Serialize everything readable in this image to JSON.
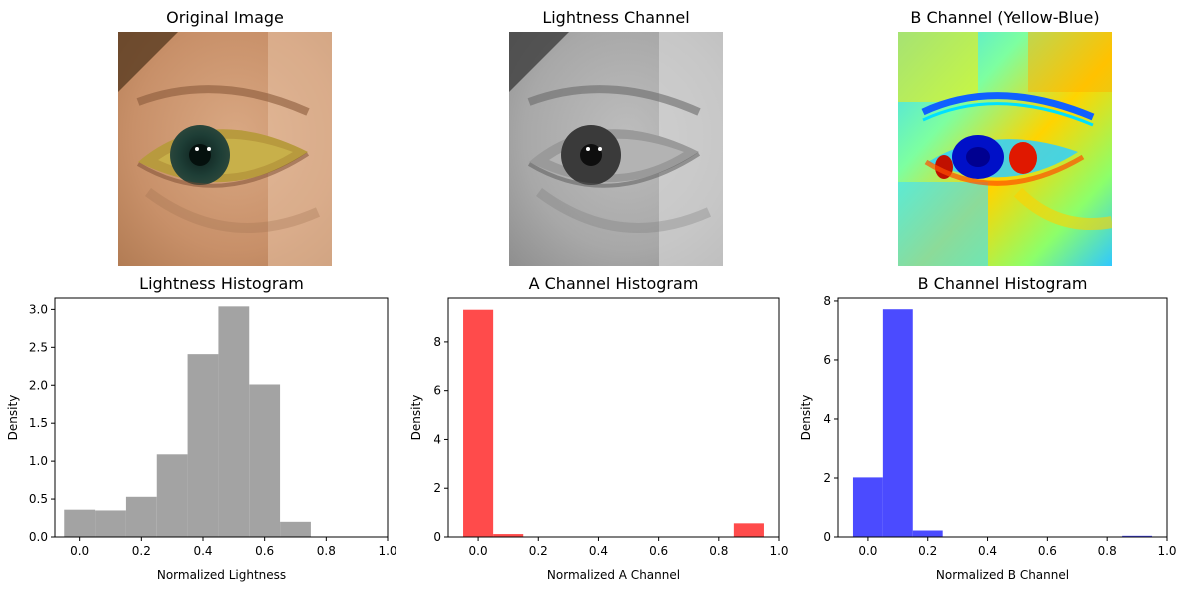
{
  "colors": {
    "lightness": "#a3a3a3",
    "a_channel": "#ff4b4b",
    "b_channel": "#4b4bff"
  },
  "images": [
    {
      "title": "Original Image",
      "kind": "original"
    },
    {
      "title": "Lightness Channel",
      "kind": "grayscale"
    },
    {
      "title": "B Channel (Yellow-Blue)",
      "kind": "jet"
    }
  ],
  "chart_data": [
    {
      "type": "bar",
      "title": "Lightness Histogram",
      "xlabel": "Normalized Lightness",
      "ylabel": "Density",
      "xlim": [
        -0.08,
        1.0
      ],
      "ylim": [
        0,
        3.15
      ],
      "xticks": [
        "0.0",
        "0.2",
        "0.4",
        "0.6",
        "0.8",
        "1.0"
      ],
      "yticks": [
        "0.0",
        "0.5",
        "1.0",
        "1.5",
        "2.0",
        "2.5",
        "3.0"
      ],
      "bin_edges": [
        -0.05,
        0.05,
        0.15,
        0.25,
        0.35,
        0.45,
        0.55,
        0.65,
        0.75,
        0.85,
        0.95
      ],
      "values": [
        0.36,
        0.35,
        0.53,
        1.09,
        2.41,
        3.04,
        2.01,
        0.2,
        0,
        0
      ],
      "color_key": "lightness"
    },
    {
      "type": "bar",
      "title": "A Channel Histogram",
      "xlabel": "Normalized A Channel",
      "ylabel": "Density",
      "xlim": [
        -0.1,
        1.0
      ],
      "ylim": [
        0,
        9.8
      ],
      "xticks": [
        "0.0",
        "0.2",
        "0.4",
        "0.6",
        "0.8",
        "1.0"
      ],
      "yticks": [
        "0",
        "2",
        "4",
        "6",
        "8"
      ],
      "bin_edges": [
        -0.05,
        0.05,
        0.15,
        0.25,
        0.35,
        0.45,
        0.55,
        0.65,
        0.75,
        0.85,
        0.95
      ],
      "values": [
        9.32,
        0.12,
        0,
        0,
        0,
        0,
        0,
        0,
        0,
        0.56
      ],
      "color_key": "a_channel"
    },
    {
      "type": "bar",
      "title": "B Channel Histogram",
      "xlabel": "Normalized B Channel",
      "ylabel": "Density",
      "xlim": [
        -0.1,
        1.0
      ],
      "ylim": [
        0,
        8.1
      ],
      "xticks": [
        "0.0",
        "0.2",
        "0.4",
        "0.6",
        "0.8",
        "1.0"
      ],
      "yticks": [
        "0",
        "2",
        "4",
        "6",
        "8"
      ],
      "bin_edges": [
        -0.05,
        0.05,
        0.15,
        0.25,
        0.35,
        0.45,
        0.55,
        0.65,
        0.75,
        0.85,
        0.95
      ],
      "values": [
        2.02,
        7.72,
        0.22,
        0,
        0,
        0,
        0,
        0,
        0,
        0.04
      ],
      "color_key": "b_channel"
    }
  ]
}
